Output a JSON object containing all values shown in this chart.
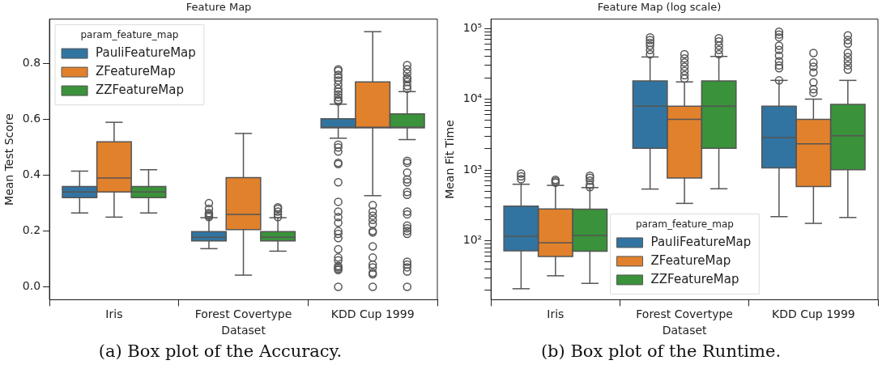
{
  "chart_data": [
    {
      "type": "box",
      "title": "Feature Map",
      "xlabel": "Dataset",
      "ylabel": "Mean Test Score",
      "legend_title": "param_feature_map",
      "legend": "top left",
      "grid": false,
      "categories": [
        "Iris",
        "Forest Covertype",
        "KDD Cup 1999"
      ],
      "ylim": [
        -0.046,
        0.96
      ],
      "yticks": [
        {
          "value": 0,
          "label": "0.0"
        },
        {
          "value": 0.2,
          "label": "0.2"
        },
        {
          "value": 0.4,
          "label": "0.4"
        },
        {
          "value": 0.6,
          "label": "0.6"
        },
        {
          "value": 0.8,
          "label": "0.8"
        }
      ],
      "annotations": [
        "(a) Box plot of the Accuracy."
      ],
      "series": [
        {
          "name": "PauliFeatureMap",
          "color": "#3274a1",
          "boxes": [
            {
              "low": 0.265,
              "q1": 0.32,
              "median": 0.34,
              "q3": 0.36,
              "high": 0.415
            },
            {
              "low": 0.137,
              "q1": 0.165,
              "median": 0.178,
              "q3": 0.198,
              "high": 0.248,
              "outliers": [
                0.25,
                0.255,
                0.26,
                0.265,
                0.28,
                0.3
              ]
            },
            {
              "low": 0.533,
              "q1": 0.57,
              "median": 0.572,
              "q3": 0.603,
              "high": 0.655,
              "outliers": [
                0.665,
                0.67,
                0.68,
                0.69,
                0.7,
                0.71,
                0.725,
                0.74,
                0.75,
                0.76,
                0.775,
                0.78,
                0.51,
                0.5,
                0.485,
                0.445,
                0.44,
                0.375,
                0.305,
                0.27,
                0.25,
                0.23,
                0.2,
                0.19,
                0.175,
                0.135,
                0.105,
                0.095,
                0.075,
                0.07,
                0.065,
                0.06,
                0
              ]
            }
          ]
        },
        {
          "name": "ZFeatureMap",
          "color": "#e1812c",
          "boxes": [
            {
              "low": 0.25,
              "q1": 0.34,
              "median": 0.39,
              "q3": 0.52,
              "high": 0.59
            },
            {
              "low": 0.042,
              "q1": 0.205,
              "median": 0.26,
              "q3": 0.392,
              "high": 0.55
            },
            {
              "low": 0.327,
              "q1": 0.57,
              "median": 0.572,
              "q3": 0.735,
              "high": 0.915,
              "outliers": [
                0.293,
                0.27,
                0.255,
                0.24,
                0.225,
                0.2,
                0.195,
                0.145,
                0.105,
                0.08,
                0.07,
                0.05,
                0.045,
                0
              ]
            }
          ]
        },
        {
          "name": "ZZFeatureMap",
          "color": "#3a923a",
          "boxes": [
            {
              "low": 0.265,
              "q1": 0.32,
              "median": 0.34,
              "q3": 0.36,
              "high": 0.42
            },
            {
              "low": 0.128,
              "q1": 0.165,
              "median": 0.178,
              "q3": 0.198,
              "high": 0.248,
              "outliers": [
                0.25,
                0.26,
                0.27,
                0.28,
                0.285
              ]
            },
            {
              "low": 0.528,
              "q1": 0.57,
              "median": 0.572,
              "q3": 0.62,
              "high": 0.7,
              "outliers": [
                0.71,
                0.72,
                0.735,
                0.745,
                0.75,
                0.765,
                0.78,
                0.795,
                0.452,
                0.445,
                0.41,
                0.385,
                0.375,
                0.34,
                0.33,
                0.27,
                0.26,
                0.22,
                0.21,
                0.2,
                0.19,
                0.09,
                0.08,
                0.07,
                0.055,
                0
              ]
            }
          ]
        }
      ]
    },
    {
      "type": "box",
      "title": "Feature Map (log scale)",
      "xlabel": "Dataset",
      "ylabel": "Mean Fit Time",
      "legend_title": "param_feature_map",
      "legend": "bottom",
      "grid": false,
      "log": true,
      "categories": [
        "Iris",
        "Forest Covertype",
        "KDD Cup 1999"
      ],
      "ylim": [
        14.7,
        135000
      ],
      "yticks": [
        {
          "value": 20,
          "label": null
        },
        {
          "value": 30,
          "label": null
        },
        {
          "value": 40,
          "label": null
        },
        {
          "value": 50,
          "label": null
        },
        {
          "value": 60,
          "label": null
        },
        {
          "value": 70,
          "label": null
        },
        {
          "value": 80,
          "label": null
        },
        {
          "value": 90,
          "label": null
        },
        {
          "value": 100,
          "label": "10²"
        },
        {
          "value": 200,
          "label": null
        },
        {
          "value": 300,
          "label": null
        },
        {
          "value": 400,
          "label": null
        },
        {
          "value": 500,
          "label": null
        },
        {
          "value": 600,
          "label": null
        },
        {
          "value": 700,
          "label": null
        },
        {
          "value": 800,
          "label": null
        },
        {
          "value": 900,
          "label": null
        },
        {
          "value": 1000,
          "label": "10³"
        },
        {
          "value": 2000,
          "label": null
        },
        {
          "value": 3000,
          "label": null
        },
        {
          "value": 4000,
          "label": null
        },
        {
          "value": 5000,
          "label": null
        },
        {
          "value": 6000,
          "label": null
        },
        {
          "value": 7000,
          "label": null
        },
        {
          "value": 8000,
          "label": null
        },
        {
          "value": 9000,
          "label": null
        },
        {
          "value": 10000,
          "label": "10⁴"
        },
        {
          "value": 20000,
          "label": null
        },
        {
          "value": 30000,
          "label": null
        },
        {
          "value": 40000,
          "label": null
        },
        {
          "value": 50000,
          "label": null
        },
        {
          "value": 60000,
          "label": null
        },
        {
          "value": 70000,
          "label": null
        },
        {
          "value": 80000,
          "label": null
        },
        {
          "value": 90000,
          "label": null
        },
        {
          "value": 100000,
          "label": "10⁵"
        }
      ],
      "annotations": [
        "(b) Box plot of the Runtime."
      ],
      "series": [
        {
          "name": "PauliFeatureMap",
          "color": "#3274a1",
          "boxes": [
            {
              "low": 21,
              "q1": 72,
              "median": 116,
              "q3": 308,
              "high": 628,
              "outliers": [
                740,
                810,
                890
              ]
            },
            {
              "low": 537,
              "q1": 2020,
              "median": 7960,
              "q3": 18100,
              "high": 39400,
              "outliers": [
                43100,
                49500,
                56800,
                62200,
                68100,
                74600
              ]
            },
            {
              "low": 219,
              "q1": 1070,
              "median": 2860,
              "q3": 7960,
              "high": 18400,
              "outliers": [
                18400,
                27300,
                29900,
                34300,
                41200,
                49500,
                56800,
                74600,
                81800,
                89600
              ]
            }
          ]
        },
        {
          "name": "ZFeatureMap",
          "color": "#e1812c",
          "boxes": [
            {
              "low": 32,
              "q1": 60,
              "median": 94,
              "q3": 281,
              "high": 605,
              "outliers": [
                662,
                694,
                726
              ]
            },
            {
              "low": 337,
              "q1": 767,
              "median": 5180,
              "q3": 7960,
              "high": 17500,
              "outliers": [
                19500,
                21700,
                24900,
                28600,
                32800,
                37600,
                43100
              ]
            },
            {
              "low": 176,
              "q1": 583,
              "median": 2340,
              "q3": 5180,
              "high": 10000,
              "outliers": [
                12300,
                13800,
                17300,
                23800,
                28600,
                32800,
                44800
              ]
            }
          ]
        },
        {
          "name": "ZZFeatureMap",
          "color": "#3a923a",
          "boxes": [
            {
              "low": 25,
              "q1": 71,
              "median": 119,
              "q3": 279,
              "high": 563,
              "outliers": [
                573,
                617,
                706,
                774,
                826
              ]
            },
            {
              "low": 542,
              "q1": 2020,
              "median": 7960,
              "q3": 18100,
              "high": 40100,
              "outliers": [
                43100,
                49500,
                56800,
                65100,
                72600
              ]
            },
            {
              "low": 213,
              "q1": 1010,
              "median": 3050,
              "q3": 8410,
              "high": 18400,
              "outliers": [
                26100,
                29900,
                34300,
                39400,
                45200,
                60500,
                68100,
                79600
              ]
            }
          ]
        }
      ]
    }
  ]
}
